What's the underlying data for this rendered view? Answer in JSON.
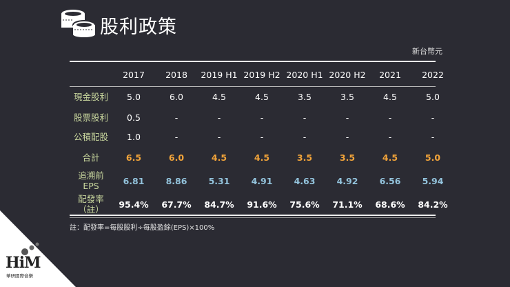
{
  "header": {
    "title": "股利政策",
    "icon": "coins-icon"
  },
  "currency_unit": "新台幣元",
  "table": {
    "columns": [
      "2017",
      "2018",
      "2019 H1",
      "2019 H2",
      "2020 H1",
      "2020 H2",
      "2021",
      "2022"
    ],
    "rows": [
      {
        "label": [
          "現金股利"
        ],
        "values": [
          "5.0",
          "6.0",
          "4.5",
          "4.5",
          "3.5",
          "3.5",
          "4.5",
          "5.0"
        ],
        "style": "plain"
      },
      {
        "label": [
          "股票股利"
        ],
        "values": [
          "0.5",
          "-",
          "-",
          "-",
          "-",
          "-",
          "-",
          "-"
        ],
        "style": "plain"
      },
      {
        "label": [
          "公積配股"
        ],
        "values": [
          "1.0",
          "-",
          "-",
          "-",
          "-",
          "-",
          "-",
          "-"
        ],
        "style": "plain"
      },
      {
        "label": [
          "合計"
        ],
        "values": [
          "6.5",
          "6.0",
          "4.5",
          "4.5",
          "3.5",
          "3.5",
          "4.5",
          "5.0"
        ],
        "style": "orange"
      },
      {
        "label": [
          "追溯前",
          "EPS"
        ],
        "values": [
          "6.81",
          "8.86",
          "5.31",
          "4.91",
          "4.63",
          "4.92",
          "6.56",
          "5.94"
        ],
        "style": "blue"
      },
      {
        "label": [
          "配發率",
          "（註）"
        ],
        "values": [
          "95.4%",
          "67.7%",
          "84.7%",
          "91.6%",
          "75.6%",
          "71.1%",
          "68.6%",
          "84.2%"
        ],
        "style": "bold"
      }
    ]
  },
  "note": "註：配發率=每股股利÷每股盈餘(EPS)×100%",
  "logo": {
    "text": "HiM",
    "subtitle": "華研國際音樂"
  },
  "colors": {
    "background": "#2b2b33",
    "label": "#c9d79e",
    "total": "#f2a43a",
    "eps": "#93c3dc"
  }
}
